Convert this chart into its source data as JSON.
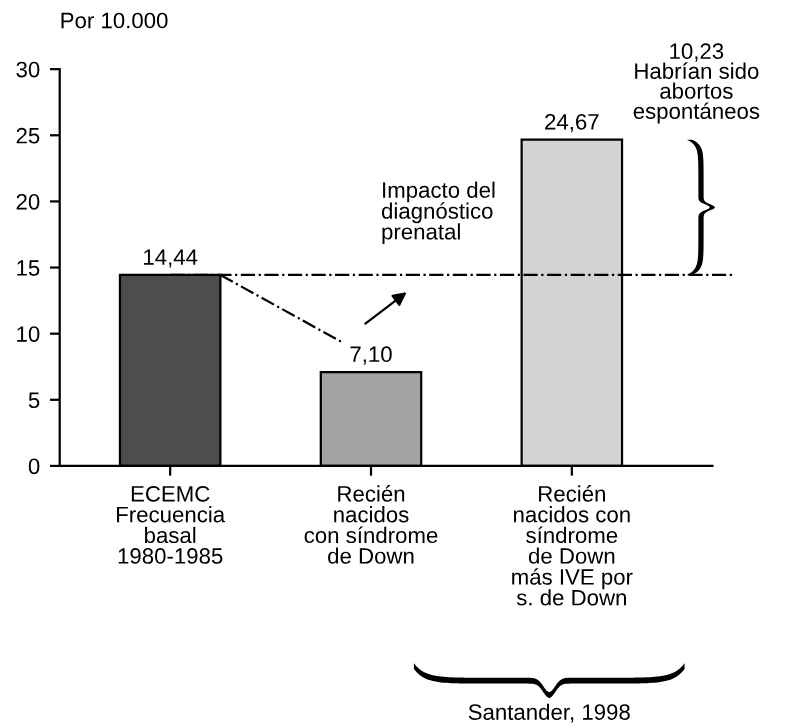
{
  "chart_data": {
    "type": "bar",
    "ylabel": "Por 10.000",
    "categories": [
      "ECEMC\nFrecuencia\nbasal\n1980-1985",
      "Recién\nnacidos\ncon síndrome\nde Down",
      "Recién\nnacidos con\nsíndrome\nde Down\nmás IVE por\ns. de Down"
    ],
    "values": [
      14.44,
      7.1,
      24.67
    ],
    "colors": [
      "#4d4d4d",
      "#a3a3a3",
      "#d3d3d3"
    ],
    "value_labels": [
      "14,44",
      "7,10",
      "24,67"
    ],
    "ylim": [
      0,
      30
    ],
    "yticks": [
      0,
      5,
      10,
      15,
      20,
      25,
      30
    ],
    "ref_lines": [
      {
        "axis": "y",
        "value": 14.44,
        "line_style": "dashed"
      }
    ],
    "annotations": [
      "Impacto del\ndiagnóstico\nprenatal",
      "10,23\nHabrían sido\nabortos\nespontáneos",
      "Santander, 1998"
    ],
    "grid": false,
    "legend": false
  }
}
